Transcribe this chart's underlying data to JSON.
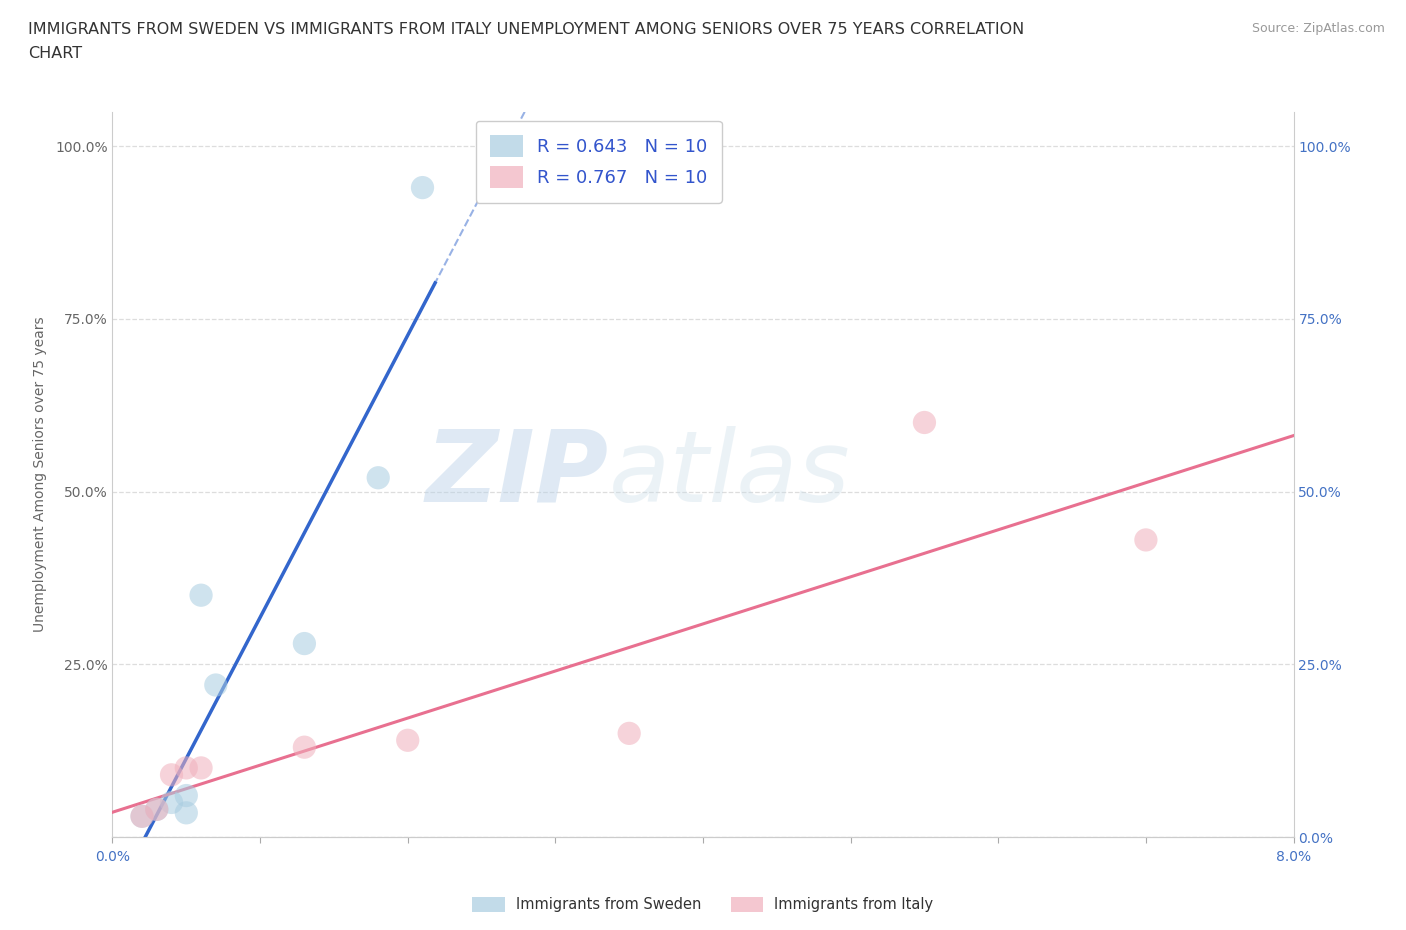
{
  "title_line1": "IMMIGRANTS FROM SWEDEN VS IMMIGRANTS FROM ITALY UNEMPLOYMENT AMONG SENIORS OVER 75 YEARS CORRELATION",
  "title_line2": "CHART",
  "source": "Source: ZipAtlas.com",
  "ylabel": "Unemployment Among Seniors over 75 years",
  "xlim": [
    0.0,
    0.08
  ],
  "ylim": [
    0.0,
    1.05
  ],
  "sweden_x": [
    0.002,
    0.003,
    0.004,
    0.005,
    0.005,
    0.006,
    0.007,
    0.013,
    0.018,
    0.021
  ],
  "sweden_y": [
    0.03,
    0.04,
    0.05,
    0.06,
    0.035,
    0.35,
    0.22,
    0.28,
    0.52,
    0.94
  ],
  "italy_x": [
    0.002,
    0.003,
    0.004,
    0.005,
    0.006,
    0.013,
    0.02,
    0.035,
    0.055,
    0.07
  ],
  "italy_y": [
    0.03,
    0.04,
    0.09,
    0.1,
    0.1,
    0.13,
    0.14,
    0.15,
    0.6,
    0.43
  ],
  "sweden_color": "#a8cce0",
  "italy_color": "#f0b0bc",
  "sweden_line_color": "#3366cc",
  "italy_line_color": "#e87090",
  "sweden_R": 0.643,
  "sweden_N": 10,
  "italy_R": 0.767,
  "italy_N": 10,
  "background_color": "#ffffff",
  "watermark_zip": "ZIP",
  "watermark_atlas": "atlas",
  "grid_color": "#dddddd",
  "title_fontsize": 11.5,
  "axis_label_fontsize": 10,
  "tick_fontsize": 10,
  "legend_fontsize": 13
}
